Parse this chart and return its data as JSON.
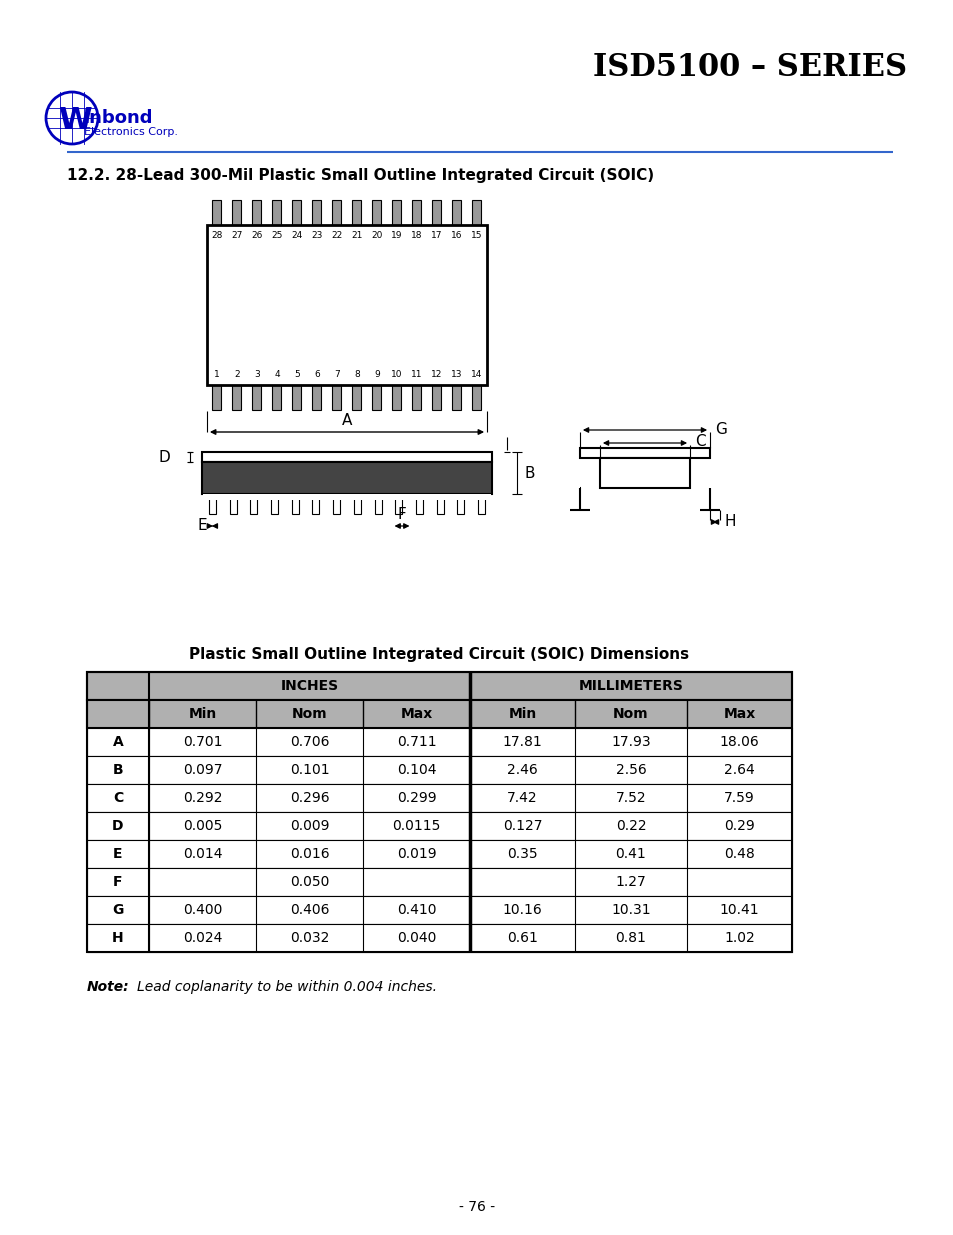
{
  "title": "ISD5100 – SERIES",
  "section_title_prefix": "12.2. ",
  "section_title_body": "28-L",
  "section_title_full": "12.2. 28-Lead 300-Mil Plastic Small Outline Integrated Circuit (SOIC)",
  "table_title": "Plastic Small Outline Integrated Circuit (SOIC) Dimensions",
  "note_bold": "Note:",
  "note_italic": "   Lead coplanarity to be within 0.004 inches.",
  "page_number": "- 76 -",
  "table_rows": [
    [
      "A",
      "0.701",
      "0.706",
      "0.711",
      "17.81",
      "17.93",
      "18.06"
    ],
    [
      "B",
      "0.097",
      "0.101",
      "0.104",
      "2.46",
      "2.56",
      "2.64"
    ],
    [
      "C",
      "0.292",
      "0.296",
      "0.299",
      "7.42",
      "7.52",
      "7.59"
    ],
    [
      "D",
      "0.005",
      "0.009",
      "0.0115",
      "0.127",
      "0.22",
      "0.29"
    ],
    [
      "E",
      "0.014",
      "0.016",
      "0.019",
      "0.35",
      "0.41",
      "0.48"
    ],
    [
      "F",
      "",
      "0.050",
      "",
      "",
      "1.27",
      ""
    ],
    [
      "G",
      "0.400",
      "0.406",
      "0.410",
      "10.16",
      "10.31",
      "10.41"
    ],
    [
      "H",
      "0.024",
      "0.032",
      "0.040",
      "0.61",
      "0.81",
      "1.02"
    ]
  ],
  "top_pin_numbers": [
    "28",
    "27",
    "26",
    "25",
    "24",
    "23",
    "22",
    "21",
    "20",
    "19",
    "18",
    "17",
    "16",
    "15"
  ],
  "bottom_pin_numbers": [
    "1",
    "2",
    "3",
    "4",
    "5",
    "6",
    "7",
    "8",
    "9",
    "10",
    "11",
    "12",
    "13",
    "14"
  ],
  "bg_color": "#ffffff",
  "header_bg": "#b0b0b0",
  "blue_color": "#0000bb",
  "line_color": "#3366cc"
}
